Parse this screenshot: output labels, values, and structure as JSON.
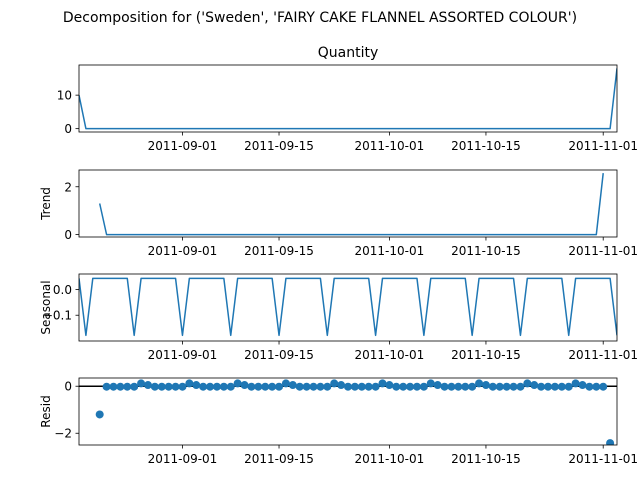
{
  "figure": {
    "suptitle": "Decomposition for ('Sweden', 'FAIRY CAKE FLANNEL ASSORTED COLOUR')",
    "line_color": "#1f77b4",
    "x_tick_labels": [
      "2011-09-01",
      "2011-09-15",
      "2011-10-01",
      "2011-10-15",
      "2011-11-01"
    ]
  },
  "chart_data": [
    {
      "type": "line",
      "title": "Quantity",
      "ylabel": "",
      "x_range": [
        "2011-08-17",
        "2011-11-03"
      ],
      "ylim": [
        -1,
        19
      ],
      "y_ticks": [
        0,
        10
      ],
      "points": [
        [
          "2011-08-17",
          10
        ],
        [
          "2011-08-18",
          0
        ],
        [
          "2011-11-02",
          0
        ],
        [
          "2011-11-03",
          18
        ]
      ]
    },
    {
      "type": "line",
      "title": "",
      "ylabel": "Trend",
      "x_range": [
        "2011-08-17",
        "2011-11-03"
      ],
      "ylim": [
        -0.1,
        2.7
      ],
      "y_ticks": [
        0,
        2
      ],
      "points": [
        [
          "2011-08-20",
          1.3
        ],
        [
          "2011-08-21",
          0
        ],
        [
          "2011-10-31",
          0
        ],
        [
          "2011-11-01",
          2.57
        ]
      ]
    },
    {
      "type": "line",
      "title": "",
      "ylabel": "Seasonal",
      "x_range": [
        "2011-08-17",
        "2011-11-03"
      ],
      "ylim": [
        -0.2,
        0.06
      ],
      "y_ticks": [
        0.0,
        -0.1
      ],
      "y_tick_labels": [
        "0.0",
        "−0.1"
      ],
      "start": "2011-08-17",
      "end": "2011-11-03",
      "cycle": [
        0.043,
        -0.178,
        0.043,
        0.043,
        0.043,
        0.043,
        0.043
      ]
    },
    {
      "type": "scatter",
      "title": "",
      "ylabel": "Resid",
      "x_range": [
        "2011-08-17",
        "2011-11-03"
      ],
      "ylim": [
        -2.5,
        0.35
      ],
      "y_ticks": [
        0,
        -2
      ],
      "y_tick_labels": [
        "0",
        "−2"
      ],
      "zero_line": true,
      "outliers": [
        [
          "2011-08-20",
          -1.2
        ],
        [
          "2011-11-02",
          -2.42
        ]
      ],
      "start": "2011-08-21",
      "end": "2011-11-01",
      "cycle": [
        -0.02,
        -0.02,
        -0.02,
        -0.02,
        -0.02,
        0.12,
        0.05
      ]
    }
  ]
}
